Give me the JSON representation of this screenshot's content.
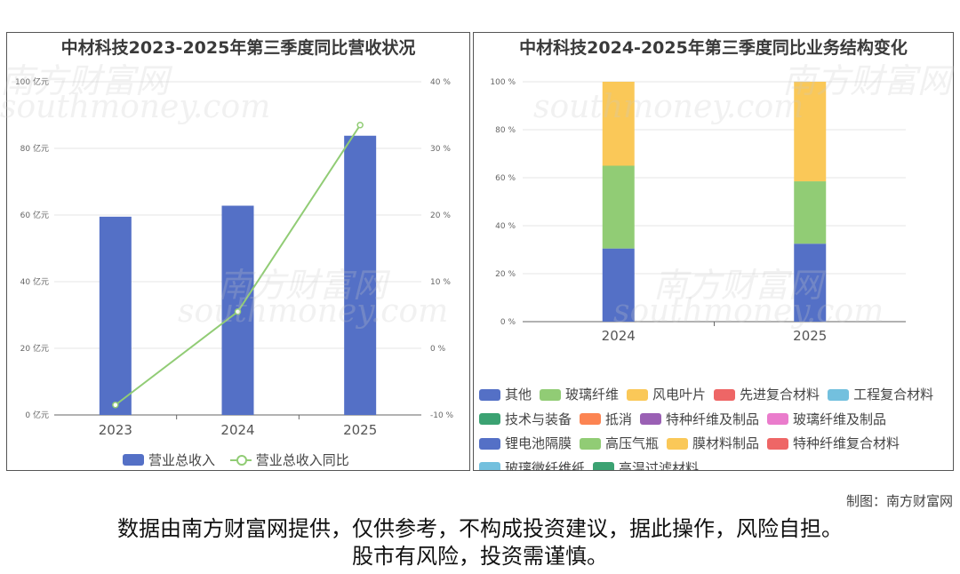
{
  "left_chart": {
    "title": "中材科技2023-2025年第三季度同比营收状况",
    "legend": {
      "bar_label": "营业总收入",
      "line_label": "营业总收入同比"
    },
    "colors": {
      "bar": "#5470c6",
      "line": "#91cc75"
    }
  },
  "right_chart": {
    "title": "中材科技2024-2025年第三季度同比业务结构变化",
    "legend": [
      {
        "label": "其他",
        "color": "#5470c6"
      },
      {
        "label": "玻璃纤维",
        "color": "#91cc75"
      },
      {
        "label": "风电叶片",
        "color": "#fac858"
      },
      {
        "label": "先进复合材料",
        "color": "#ee6666"
      },
      {
        "label": "工程复合材料",
        "color": "#73c0de"
      },
      {
        "label": "技术与装备",
        "color": "#3ba272"
      },
      {
        "label": "抵消",
        "color": "#fc8452"
      },
      {
        "label": "特种纤维及制品",
        "color": "#9a60b4"
      },
      {
        "label": "玻璃纤维及制品",
        "color": "#ea7ccc"
      },
      {
        "label": "锂电池隔膜",
        "color": "#5470c6"
      },
      {
        "label": "高压气瓶",
        "color": "#91cc75"
      },
      {
        "label": "膜材料制品",
        "color": "#fac858"
      },
      {
        "label": "特种纤维复合材料",
        "color": "#ee6666"
      },
      {
        "label": "玻璃微纤维纸",
        "color": "#73c0de"
      },
      {
        "label": "高温过滤材料",
        "color": "#3ba272"
      }
    ]
  },
  "chart_data": [
    {
      "type": "bar",
      "title": "中材科技2023-2025年第三季度同比营收状况",
      "categories": [
        "2023",
        "2024",
        "2025"
      ],
      "series": [
        {
          "name": "营业总收入",
          "type": "bar",
          "axis": "left",
          "values": [
            59.5,
            62.8,
            83.8
          ]
        },
        {
          "name": "营业总收入同比",
          "type": "line",
          "axis": "right",
          "values": [
            -8.5,
            5.5,
            33.5
          ]
        }
      ],
      "y_left": {
        "min": 0,
        "max": 100,
        "ticks": [
          "0 亿元",
          "20 亿元",
          "40 亿元",
          "60 亿元",
          "80 亿元",
          "100 亿元"
        ]
      },
      "y_right": {
        "min": -10,
        "max": 40,
        "ticks": [
          "-10 %",
          "0 %",
          "10 %",
          "20 %",
          "30 %",
          "40 %"
        ]
      },
      "grid": true
    },
    {
      "type": "bar",
      "stacked": true,
      "title": "中材科技2024-2025年第三季度同比业务结构变化",
      "categories": [
        "2024",
        "2025"
      ],
      "series": [
        {
          "name": "其他",
          "values": [
            30.5,
            32.5
          ]
        },
        {
          "name": "玻璃纤维",
          "values": [
            34.5,
            26.0
          ]
        },
        {
          "name": "风电叶片",
          "values": [
            35.0,
            41.5
          ]
        }
      ],
      "y": {
        "min": 0,
        "max": 100,
        "ticks": [
          "0 %",
          "20 %",
          "40 %",
          "60 %",
          "80 %",
          "100 %"
        ]
      },
      "grid": true
    }
  ],
  "watermark": {
    "cn": "南方财富网",
    "en": "southmoney.com"
  },
  "footer": {
    "credit": "制图：南方财富网",
    "disclaimer_line1": "数据由南方财富网提供，仅供参考，不构成投资建议，据此操作，风险自担。",
    "disclaimer_line2": "股市有风险，投资需谨慎。"
  }
}
